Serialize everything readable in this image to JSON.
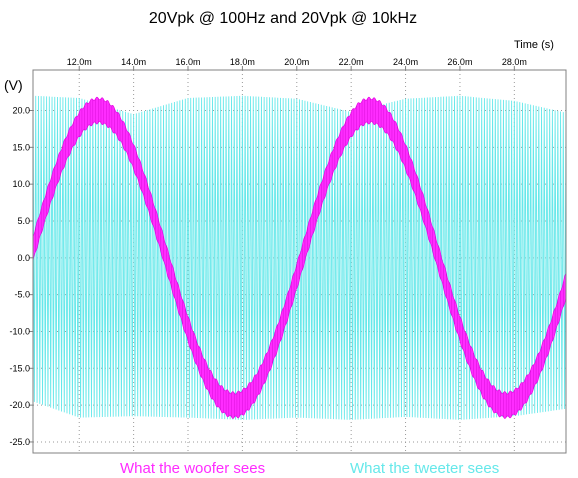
{
  "chart_data": {
    "type": "line",
    "title": "20Vpk @ 100Hz and 20Vpk @ 10kHz",
    "xlabel": "Time  (s)",
    "ylabel": "(V)",
    "x_unit_scale": 0.001,
    "xlim": [
      10.3,
      29.9
    ],
    "ylim": [
      -26.5,
      25.5
    ],
    "x_ticks": [
      12,
      14,
      16,
      18,
      20,
      22,
      24,
      26,
      28
    ],
    "x_tick_labels": [
      "12.0m",
      "14.0m",
      "16.0m",
      "18.0m",
      "20.0m",
      "22.0m",
      "24.0m",
      "26.0m",
      "28.0m"
    ],
    "y_ticks": [
      20,
      15,
      10,
      5,
      0,
      -5,
      -10,
      -15,
      -20,
      -25
    ],
    "y_tick_labels": [
      "20.0",
      "15.0",
      "10.0",
      "5.0",
      "0.0",
      "-5.0",
      "-10.0",
      "-15.0",
      "-20.0",
      "-25.0"
    ],
    "grid": true,
    "legend_position": "bottom",
    "series": [
      {
        "name": "What the tweeter sees",
        "color": "#66e8ea",
        "frequency_hz": 10000,
        "amplitude_v": 20,
        "envelope_ms": [
          10.3,
          12,
          14,
          16,
          18,
          20,
          22,
          24,
          26,
          28,
          29.9
        ],
        "envelope_max_v": [
          22,
          21.7,
          19.5,
          21.7,
          22,
          21.6,
          19.8,
          21.6,
          22,
          21.3,
          19.7
        ],
        "envelope_min_v": [
          -19.5,
          -21.7,
          -21.5,
          -21.7,
          -22,
          -21.7,
          -22,
          -21.6,
          -22,
          -21.5,
          -20.5
        ]
      },
      {
        "name": "What the woofer sees",
        "color": "#ff2cff",
        "frequency_hz": 100,
        "amplitude_v": 20,
        "peak_v": 20,
        "band_v": 3.3,
        "zero_cross_up_ms": [
          10.2,
          20.1
        ]
      }
    ]
  }
}
